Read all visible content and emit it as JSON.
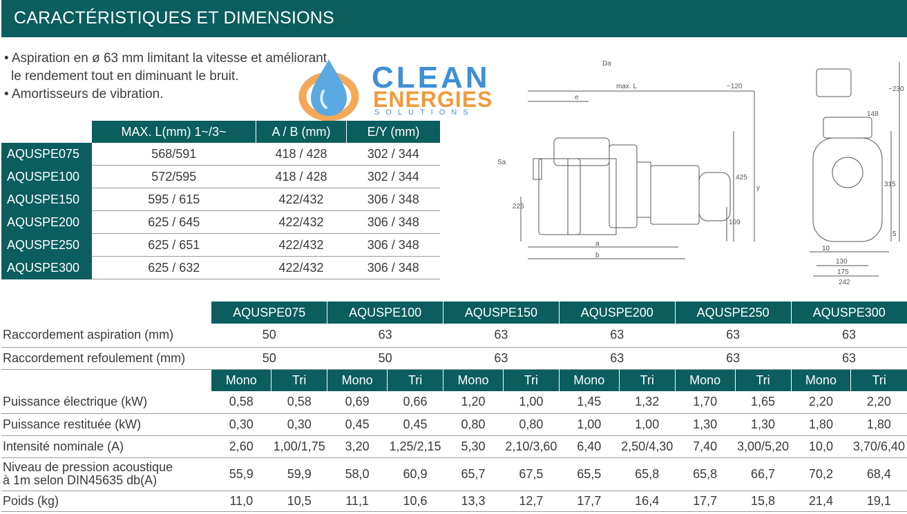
{
  "header": {
    "title": "CARACTÉRISTIQUES ET DIMENSIONS"
  },
  "bullets": [
    "• Aspiration en ø 63 mm limitant la vitesse et améliorant",
    "le rendement tout en diminuant le bruit.",
    "• Amortisseurs de vibration."
  ],
  "logo": {
    "line1": "CLEAN",
    "line2": "ENERGIES",
    "line3": "SOLUTIONS"
  },
  "drawing": {
    "labels": [
      "Da",
      "max. L",
      "~120",
      "e",
      "Sa",
      "225",
      "y",
      "425",
      "109",
      "a",
      "b",
      "~230",
      "148",
      "315",
      "5",
      "10",
      "130",
      "175",
      "242"
    ]
  },
  "dims_table": {
    "headers": [
      "MAX. L(mm)  1~/3~",
      "A / B (mm)",
      "E/Y  (mm)"
    ],
    "rows": [
      {
        "model": "AQUSPE075",
        "maxl": "568/591",
        "ab": "418 / 428",
        "ey": "302 / 344"
      },
      {
        "model": "AQUSPE100",
        "maxl": "572/595",
        "ab": "418 / 428",
        "ey": "302 / 344"
      },
      {
        "model": "AQUSPE150",
        "maxl": "595 / 615",
        "ab": "422/432",
        "ey": "306 / 348"
      },
      {
        "model": "AQUSPE200",
        "maxl": "625 / 645",
        "ab": "422/432",
        "ey": "306 / 348"
      },
      {
        "model": "AQUSPE250",
        "maxl": "625 / 651",
        "ab": "422/432",
        "ey": "306 / 348"
      },
      {
        "model": "AQUSPE300",
        "maxl": "625 / 632",
        "ab": "422/432",
        "ey": "306 / 348"
      }
    ]
  },
  "spec_table": {
    "models": [
      "AQUSPE075",
      "AQUSPE100",
      "AQUSPE150",
      "AQUSPE200",
      "AQUSPE250",
      "AQUSPE300"
    ],
    "aspiration": {
      "label": "Raccordement aspiration (mm)",
      "values": [
        "50",
        "63",
        "63",
        "63",
        "63",
        "63"
      ]
    },
    "refoulement": {
      "label": "Raccordement refoulement (mm)",
      "values": [
        "50",
        "50",
        "63",
        "63",
        "63",
        "63"
      ]
    },
    "phases": [
      "Mono",
      "Tri",
      "Mono",
      "Tri",
      "Mono",
      "Tri",
      "Mono",
      "Tri",
      "Mono",
      "Tri",
      "Mono",
      "Tri"
    ],
    "rows": [
      {
        "label": "Puissance électrique (kW)",
        "values": [
          "0,58",
          "0,58",
          "0,69",
          "0,66",
          "1,20",
          "1,00",
          "1,45",
          "1,32",
          "1,70",
          "1,65",
          "2,20",
          "2,20"
        ]
      },
      {
        "label": "Puissance restituée (kW)",
        "values": [
          "0,30",
          "0,30",
          "0,45",
          "0,45",
          "0,80",
          "0,80",
          "1,00",
          "1,00",
          "1,30",
          "1,30",
          "1,80",
          "1,80"
        ]
      },
      {
        "label": "Intensité nominale (A)",
        "values": [
          "2,60",
          "1,00/1,75",
          "3,20",
          "1,25/2,15",
          "5,30",
          "2,10/3,60",
          "6,40",
          "2,50/4,30",
          "7,40",
          "3,00/5,20",
          "10,0",
          "3,70/6,40"
        ]
      },
      {
        "label": "Niveau de pression acoustique",
        "label2": "à 1m selon DIN45635 db(A)",
        "values": [
          "55,9",
          "59,9",
          "58,0",
          "60,9",
          "65,7",
          "67,5",
          "65,5",
          "65,8",
          "65,8",
          "66,7",
          "70,2",
          "68,4"
        ]
      },
      {
        "label": "Poids (kg)",
        "values": [
          "11,0",
          "10,5",
          "11,1",
          "10,6",
          "13,3",
          "12,7",
          "17,7",
          "16,4",
          "17,7",
          "15,8",
          "21,4",
          "19,1"
        ]
      }
    ]
  },
  "colors": {
    "brand_teal": "#0b5d5e",
    "logo_blue": "#3d8fd6",
    "logo_orange": "#f29a3b"
  }
}
